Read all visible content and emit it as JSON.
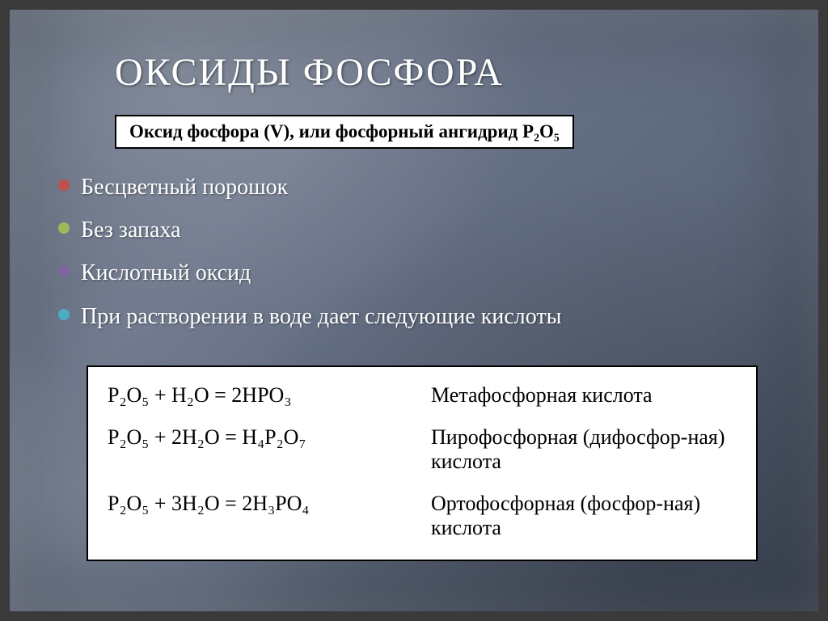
{
  "slide": {
    "title": "ОКСИДЫ ФОСФОРА",
    "subtitle": "Оксид фосфора (V), или фосфорный ангидрид P₂O₅",
    "bullets": [
      {
        "text": "Бесцветный порошок",
        "color": "#c0504d"
      },
      {
        "text": "Без запаха",
        "color": "#9bbb59"
      },
      {
        "text": "Кислотный оксид",
        "color": "#8064a2"
      },
      {
        "text": "При растворении в воде дает следующие кислоты",
        "color": "#4bacc6"
      }
    ],
    "reactions": [
      {
        "equation": "P₂O₅ + H₂O = 2HPO₃",
        "label": "Метафосфорная кислота"
      },
      {
        "equation": "P₂O₅ + 2H₂O = H₄P₂O₇",
        "label": "Пирофосфорная (дифосфор-ная) кислота"
      },
      {
        "equation": "P₂O₅ + 3H₂O = 2H₃PO₄",
        "label": "Ортофосфорная (фосфор-ная) кислота"
      }
    ],
    "styling": {
      "title_color": "#ffffff",
      "title_fontsize": 48,
      "body_text_color": "#ffffff",
      "body_fontsize": 28,
      "background_gradient": [
        "#5a6578",
        "#6b7589",
        "#4a5568"
      ],
      "frame_color": "#3a3a3a",
      "box_background": "#ffffff",
      "box_border": "#000000",
      "box_text_color": "#000000",
      "reaction_fontsize": 26,
      "subtitle_fontsize": 23
    }
  }
}
